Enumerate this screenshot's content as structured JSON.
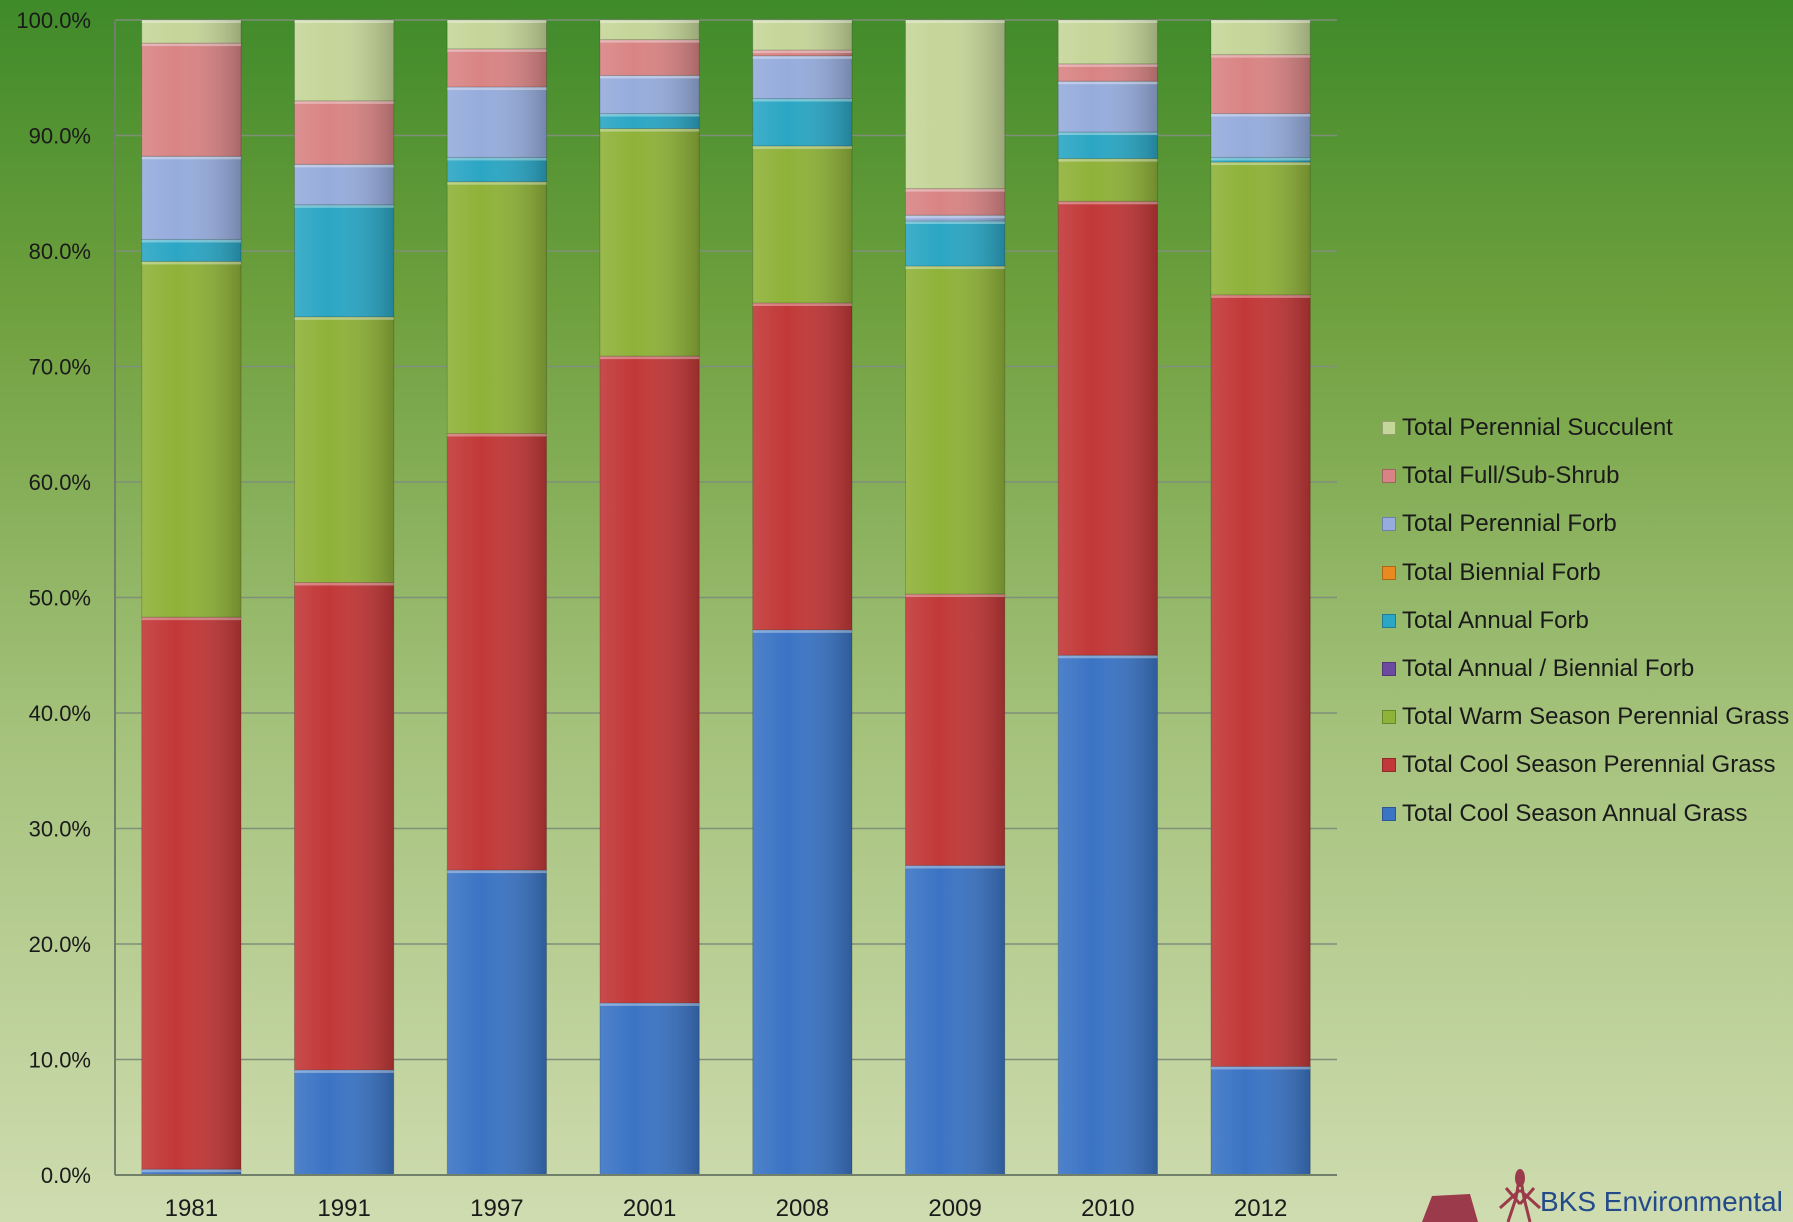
{
  "chart_data": {
    "type": "bar",
    "stacked": true,
    "categories": [
      "1981",
      "1991",
      "1997",
      "2001",
      "2008",
      "2009",
      "2010",
      "2012"
    ],
    "ylim": [
      0,
      100
    ],
    "yticks": [
      "0.0%",
      "10.0%",
      "20.0%",
      "30.0%",
      "40.0%",
      "50.0%",
      "60.0%",
      "70.0%",
      "80.0%",
      "90.0%",
      "100.0%"
    ],
    "grid": true,
    "legend_position": "right",
    "series": [
      {
        "name": "Total Cool Season Annual Grass",
        "color": "#3b74c4",
        "values": [
          0.5,
          9.1,
          26.4,
          14.9,
          47.2,
          26.8,
          45.0,
          9.4
        ]
      },
      {
        "name": "Total Cool Season Perennial Grass",
        "color": "#c23838",
        "values": [
          47.8,
          42.2,
          37.8,
          56.0,
          28.3,
          23.5,
          39.3,
          66.8
        ]
      },
      {
        "name": "Total Warm Season Perennial Grass",
        "color": "#8fb239",
        "values": [
          30.8,
          23.0,
          21.8,
          19.7,
          13.6,
          28.4,
          3.7,
          11.5
        ]
      },
      {
        "name": "Total Annual / Biennial Forb",
        "color": "#6c4aa0",
        "values": [
          0,
          0,
          0,
          0,
          0,
          0,
          0,
          0
        ]
      },
      {
        "name": "Total Annual Forb",
        "color": "#2ba6c4",
        "values": [
          1.9,
          9.7,
          2.1,
          1.3,
          4.1,
          3.9,
          2.3,
          0.4
        ]
      },
      {
        "name": "Total Biennial Forb",
        "color": "#e88a1f",
        "values": [
          0,
          0,
          0,
          0,
          0,
          0,
          0,
          0
        ]
      },
      {
        "name": "Total Perennial Forb",
        "color": "#96acdc",
        "values": [
          7.2,
          3.5,
          6.1,
          3.3,
          3.7,
          0.5,
          4.4,
          3.8
        ]
      },
      {
        "name": "Total Full/Sub-Shrub",
        "color": "#d98484",
        "values": [
          9.8,
          5.5,
          3.3,
          3.1,
          0.5,
          2.3,
          1.5,
          5.1
        ]
      },
      {
        "name": "Total Perennial Succulent",
        "color": "#c5d699",
        "values": [
          2.0,
          7.0,
          2.5,
          1.7,
          2.6,
          14.6,
          3.8,
          3.0
        ]
      }
    ]
  },
  "legend_order": [
    8,
    7,
    6,
    5,
    4,
    3,
    2,
    1,
    0
  ],
  "branding": {
    "text": "BKS Environmental"
  }
}
